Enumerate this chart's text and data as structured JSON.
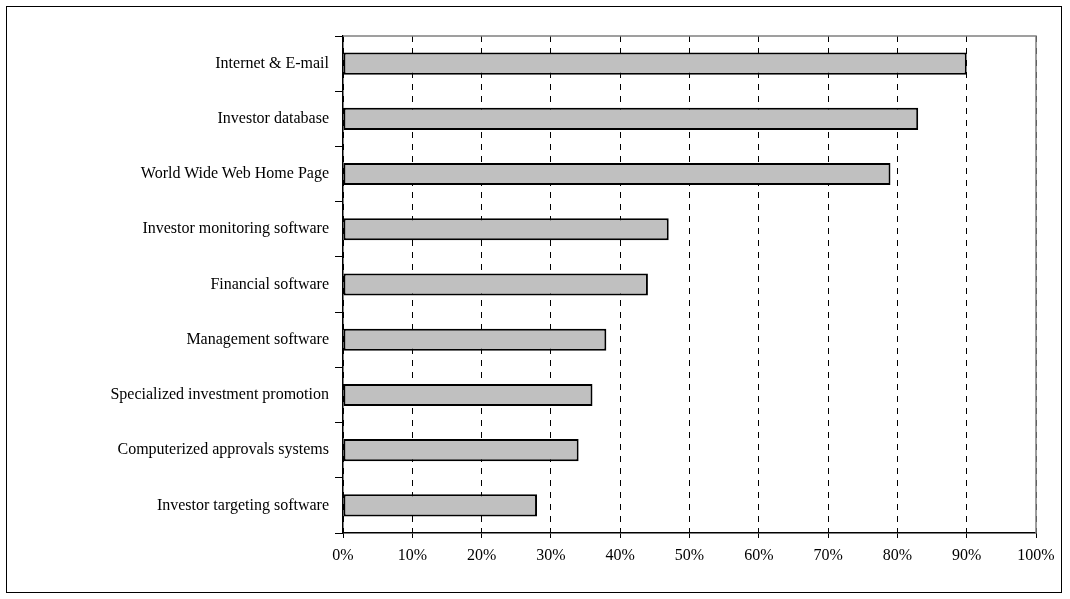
{
  "chart_data": {
    "type": "bar",
    "orientation": "horizontal",
    "categories": [
      "Internet & E-mail",
      "Investor database",
      "World Wide Web Home Page",
      "Investor monitoring software",
      "Financial software",
      "Management software",
      "Specialized investment promotion",
      "Computerized approvals systems",
      "Investor targeting software"
    ],
    "values": [
      90,
      83,
      79,
      47,
      44,
      38,
      36,
      34,
      28
    ],
    "color": "#c0c0c0",
    "xlim": [
      0,
      100
    ],
    "xticks": [
      {
        "value": 0,
        "label": "0%"
      },
      {
        "value": 10,
        "label": "10%"
      },
      {
        "value": 20,
        "label": "20%"
      },
      {
        "value": 30,
        "label": "30%"
      },
      {
        "value": 40,
        "label": "40%"
      },
      {
        "value": 50,
        "label": "50%"
      },
      {
        "value": 60,
        "label": "60%"
      },
      {
        "value": 70,
        "label": "70%"
      },
      {
        "value": 80,
        "label": "80%"
      },
      {
        "value": 90,
        "label": "90%"
      },
      {
        "value": 100,
        "label": "100%"
      }
    ],
    "grid": "x",
    "legend": false
  }
}
